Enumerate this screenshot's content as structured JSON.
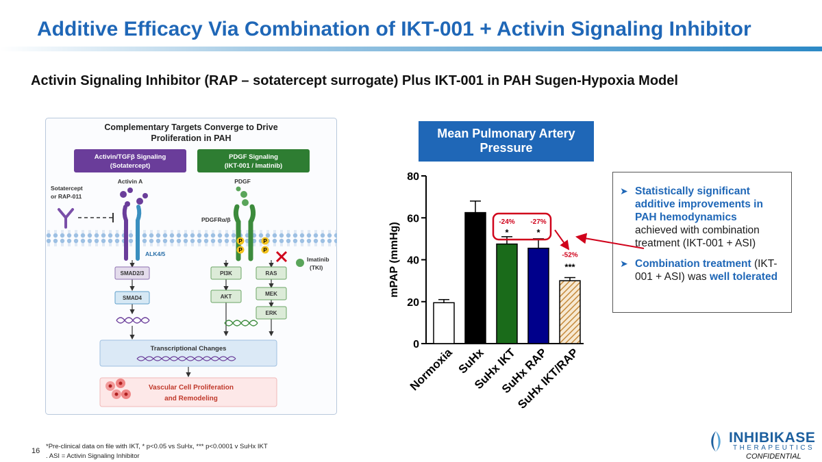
{
  "slide": {
    "title": "Additive Efficacy Via Combination of IKT-001 + Activin Signaling Inhibitor",
    "subtitle": "Activin Signaling Inhibitor (RAP – sotatercept surrogate) Plus IKT-001 in PAH Sugen-Hypoxia Model",
    "page_number": "16",
    "footnote_line1": "*Pre-clinical data on file with IKT, * p<0.05 vs SuHx, *** p<0.0001 v SuHx IKT",
    "footnote_line2": ". ASI = Activin Signaling Inhibitor",
    "confidential": "CONFIDENTIAL"
  },
  "logo": {
    "name": "INHIBIKASE",
    "sub": "THERAPEUTICS"
  },
  "figure": {
    "title_line1": "Complementary Targets Converge to Drive",
    "title_line2": "Proliferation in PAH",
    "left_header_line1": "Activin/TGFβ Signaling",
    "left_header_line2": "(Sotatercept)",
    "right_header_line1": "PDGF Signaling",
    "right_header_line2": "(IKT-001 / Imatinib)",
    "activin_a": "Activin A",
    "pdgf": "PDGF",
    "sotatercept_line1": "Sotatercept",
    "sotatercept_line2": "or RAP-011",
    "pdgfr": "PDGFRα/β",
    "alk": "ALK4/5",
    "imatinib_line1": "Imatinib",
    "imatinib_line2": "(TKI)",
    "p_label": "P",
    "smad23": "SMAD2/3",
    "smad4": "SMAD4",
    "pi3k": "PI3K",
    "akt": "AKT",
    "ras": "RAS",
    "mek": "MEK",
    "erk": "ERK",
    "transcription": "Transcriptional Changes",
    "outcome_line1": "Vascular Cell Proliferation",
    "outcome_line2": "and Remodeling",
    "colors": {
      "left_header": "#6a3d9a",
      "right_header": "#2e7d32",
      "membrane": "#8fb3d9",
      "transcription_box": "#dbe9f6",
      "outcome_box": "#fde8e8",
      "outcome_text": "#c0392b"
    }
  },
  "chart_title": "Mean Pulmonary Artery Pressure",
  "chart_data": {
    "type": "bar",
    "categories": [
      "Normoxia",
      "SuHx",
      "SuHx IKT",
      "SuHx RAP",
      "SuHx IKT/RAP"
    ],
    "values": [
      19.5,
      62.5,
      47.5,
      45.5,
      30
    ],
    "errors": [
      1.5,
      5.5,
      3.5,
      4.5,
      1.5
    ],
    "fills": [
      "#ffffff",
      "#000000",
      "#1a6b1a",
      "#00008b",
      "hatch"
    ],
    "ylabel": "mPAP (mmHg)",
    "xlabel": "",
    "ylim": [
      0,
      80
    ],
    "yticks": [
      0,
      20,
      40,
      60,
      80
    ],
    "annotations": [
      {
        "category": "SuHx IKT",
        "percent": "-24%",
        "stars": "*"
      },
      {
        "category": "SuHx RAP",
        "percent": "-27%",
        "stars": "*"
      },
      {
        "category": "SuHx IKT/RAP",
        "percent": "-52%",
        "stars": "***"
      }
    ],
    "annotation_color": "#d0021b"
  },
  "callout": {
    "bullet1_bold": "Statistically significant additive improvements in PAH hemodynamics",
    "bullet1_rest": "achieved with combination treatment (IKT-001 + ASI)",
    "bullet2_bold": "Combination treatment",
    "bullet2_mid": "(IKT-001 + ASI) was",
    "bullet2_end": "well tolerated"
  }
}
